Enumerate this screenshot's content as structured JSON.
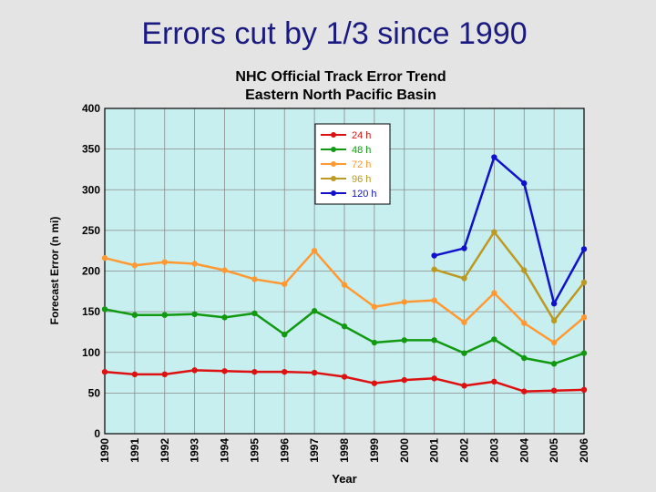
{
  "slide": {
    "title": "Errors cut by 1/3 since 1990"
  },
  "chart_data": {
    "type": "line",
    "title": "NHC Official Track Error Trend",
    "subtitle": "Eastern North Pacific Basin",
    "xlabel": "Year",
    "ylabel": "Forecast Error (n mi)",
    "ylim": [
      0,
      400
    ],
    "yticks": [
      0,
      50,
      100,
      150,
      200,
      250,
      300,
      350,
      400
    ],
    "grid": true,
    "legend_position": "top-center",
    "plot_background": "#c8efef",
    "categories": [
      "1990",
      "1991",
      "1992",
      "1993",
      "1994",
      "1995",
      "1996",
      "1997",
      "1998",
      "1999",
      "2000",
      "2001",
      "2002",
      "2003",
      "2004",
      "2005",
      "2006"
    ],
    "series": [
      {
        "name": "24 h",
        "color": "#dd1111",
        "values": [
          76,
          73,
          73,
          78,
          77,
          76,
          76,
          75,
          70,
          62,
          66,
          68,
          59,
          64,
          52,
          53,
          54
        ]
      },
      {
        "name": "48 h",
        "color": "#119911",
        "values": [
          153,
          146,
          146,
          147,
          143,
          148,
          122,
          151,
          132,
          112,
          115,
          115,
          99,
          116,
          93,
          86,
          99
        ]
      },
      {
        "name": "72 h",
        "color": "#ff9933",
        "values": [
          216,
          207,
          211,
          209,
          201,
          190,
          184,
          225,
          183,
          156,
          162,
          164,
          137,
          173,
          136,
          112,
          143
        ]
      },
      {
        "name": "96 h",
        "color": "#bb9922",
        "values": [
          null,
          null,
          null,
          null,
          null,
          null,
          null,
          null,
          null,
          null,
          null,
          202,
          191,
          248,
          201,
          139,
          186
        ]
      },
      {
        "name": "120 h",
        "color": "#1111cc",
        "values": [
          null,
          null,
          null,
          null,
          null,
          null,
          null,
          null,
          null,
          null,
          null,
          219,
          228,
          340,
          308,
          160,
          227
        ]
      }
    ]
  }
}
